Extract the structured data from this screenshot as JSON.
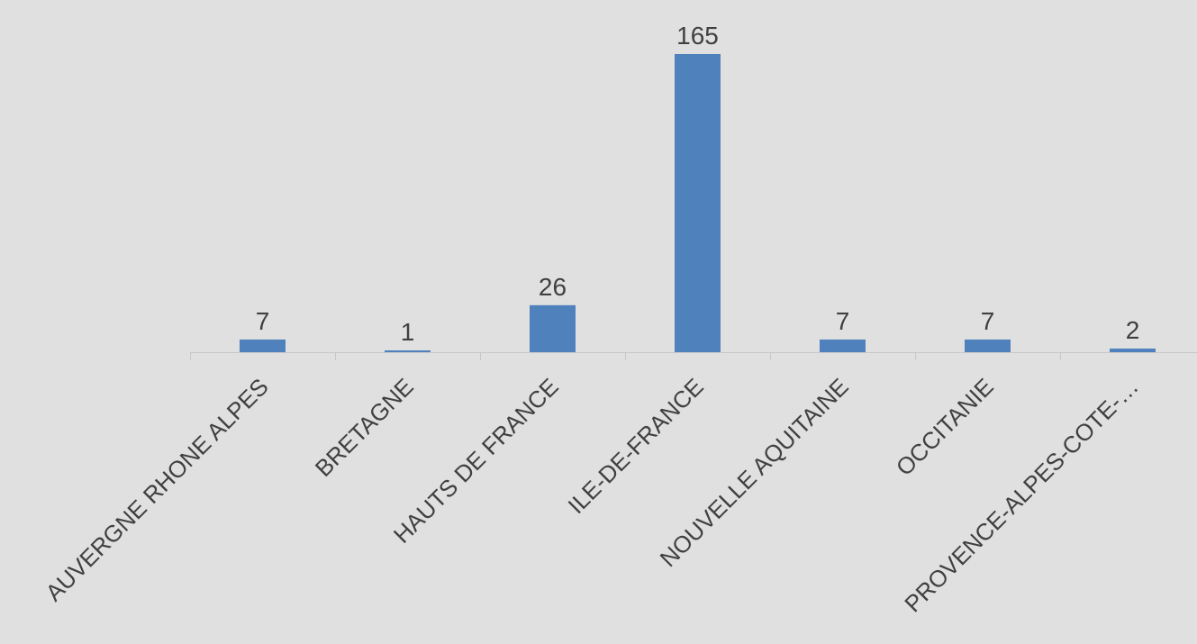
{
  "chart_data": {
    "type": "bar",
    "categories": [
      "AUVERGNE RHONE ALPES",
      "BRETAGNE",
      "HAUTS DE FRANCE",
      "ILE-DE-FRANCE",
      "NOUVELLE AQUITAINE",
      "OCCITANIE",
      "PROVENCE-ALPES-COTE-…"
    ],
    "values": [
      7,
      1,
      26,
      165,
      7,
      7,
      2
    ],
    "data_labels": [
      "7",
      "1",
      "26",
      "165",
      "7",
      "7",
      "2"
    ],
    "ylim": [
      0,
      165
    ],
    "grid": false,
    "legend": "none"
  },
  "colors": {
    "background": "#e0e0e0",
    "bar": "#4f81bd",
    "axis": "#c8c8c8",
    "text": "#404040"
  }
}
